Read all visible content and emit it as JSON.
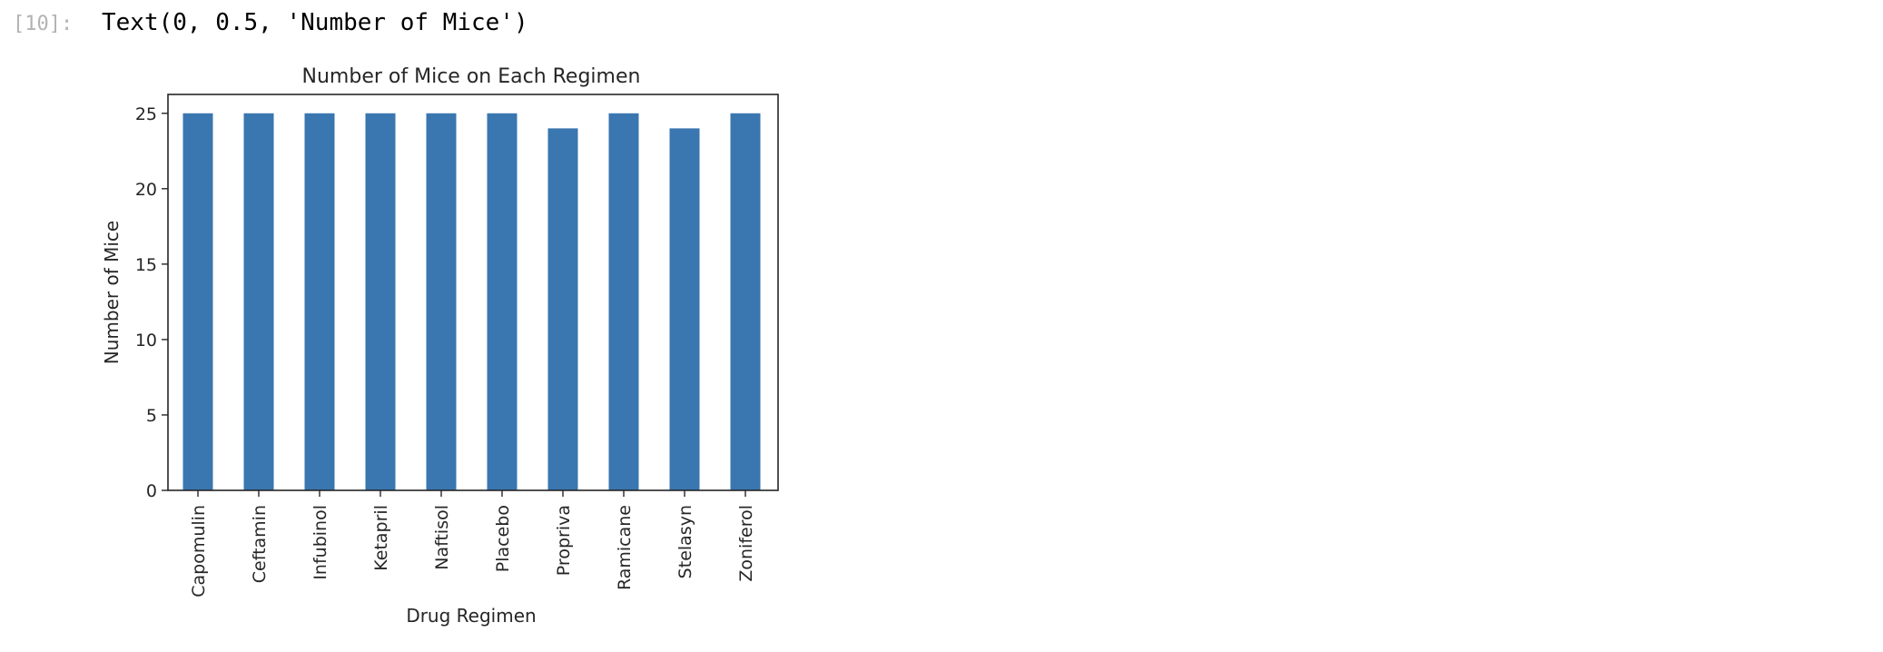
{
  "cell": {
    "prompt": "[10]:",
    "output_text": "Text(0, 0.5, 'Number of Mice')"
  },
  "chart_data": {
    "type": "bar",
    "title": "Number of Mice on Each Regimen",
    "xlabel": "Drug Regimen",
    "ylabel": "Number of Mice",
    "categories": [
      "Capomulin",
      "Ceftamin",
      "Infubinol",
      "Ketapril",
      "Naftisol",
      "Placebo",
      "Propriva",
      "Ramicane",
      "Stelasyn",
      "Zoniferol"
    ],
    "values": [
      25,
      25,
      25,
      25,
      25,
      25,
      24,
      25,
      24,
      25
    ],
    "ylim": [
      0,
      26.25
    ],
    "yticks": [
      0,
      5,
      10,
      15,
      20,
      25
    ],
    "bar_color": "#3a76af",
    "grid": false,
    "legend": "none"
  }
}
